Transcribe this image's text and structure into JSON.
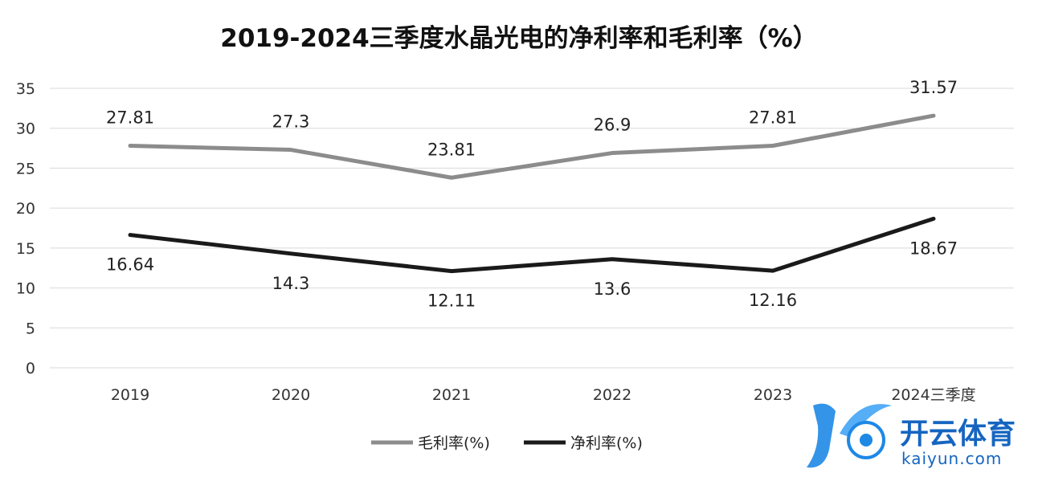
{
  "chart_data": {
    "type": "line",
    "title": "2019-2024三季度水晶光电的净利率和毛利率（%）",
    "categories": [
      "2019",
      "2020",
      "2021",
      "2022",
      "2023",
      "2024三季度"
    ],
    "series": [
      {
        "name": "毛利率(%)",
        "color": "#8c8c8c",
        "values": [
          27.81,
          27.3,
          23.81,
          26.9,
          27.81,
          31.57
        ]
      },
      {
        "name": "净利率(%)",
        "color": "#1a1a1a",
        "values": [
          16.64,
          14.3,
          12.11,
          13.6,
          12.16,
          18.67
        ]
      }
    ],
    "yticks": [
      0,
      5,
      10,
      15,
      20,
      25,
      30,
      35
    ],
    "ylim": [
      0,
      35
    ],
    "grid": true,
    "legend": "bottom"
  },
  "watermark": {
    "text_cn": "开云体育",
    "text_en": "kaiyun.com",
    "colors": {
      "primary": "#1e88e5",
      "accent": "#0d47a1"
    }
  }
}
